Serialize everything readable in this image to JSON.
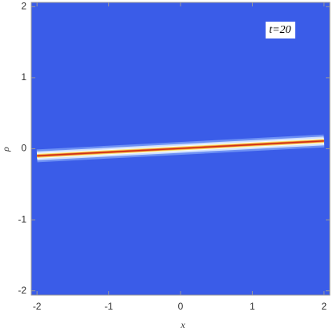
{
  "chart_data": {
    "type": "density",
    "annotation": "t=20",
    "xlabel": "x",
    "ylabel": "ρ",
    "xlim": [
      -2.08,
      2.08
    ],
    "ylim": [
      -2.06,
      2.06
    ],
    "xticks": [
      -2,
      -1,
      0,
      1,
      2
    ],
    "yticks": [
      -2,
      -1,
      0,
      1,
      2
    ],
    "background": "#3a5ce8",
    "ridge": {
      "x": [
        -2,
        2
      ],
      "y": [
        -0.1,
        0.11
      ],
      "color": "#d0301a"
    }
  }
}
